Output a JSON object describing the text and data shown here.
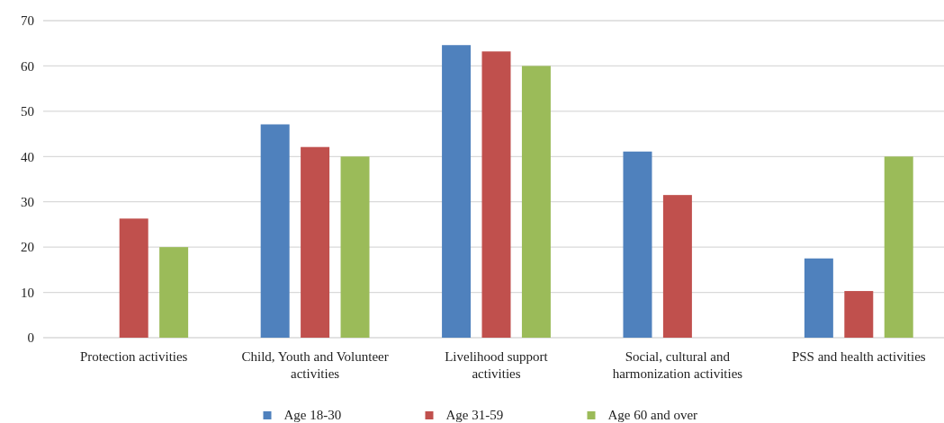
{
  "chart_data": {
    "type": "bar",
    "categories": [
      "Protection activities",
      "Child, Youth and Volunteer activities",
      "Livelihood support activities",
      "Social, cultural and harmonization activities",
      "PSS and health activities"
    ],
    "series": [
      {
        "name": "Age 18-30",
        "color": "#4f81bd",
        "values": [
          null,
          47.1,
          64.6,
          41.1,
          17.5
        ]
      },
      {
        "name": "Age 31-59",
        "color": "#c0504d",
        "values": [
          26.3,
          42.1,
          63.2,
          31.5,
          10.3
        ]
      },
      {
        "name": "Age 60 and over",
        "color": "#9bbb59",
        "values": [
          20,
          40,
          60,
          null,
          40
        ]
      }
    ],
    "ylim": [
      0,
      70
    ],
    "yticks": [
      0,
      10,
      20,
      30,
      40,
      50,
      60,
      70
    ],
    "grid": "y",
    "legend": "bottom"
  }
}
